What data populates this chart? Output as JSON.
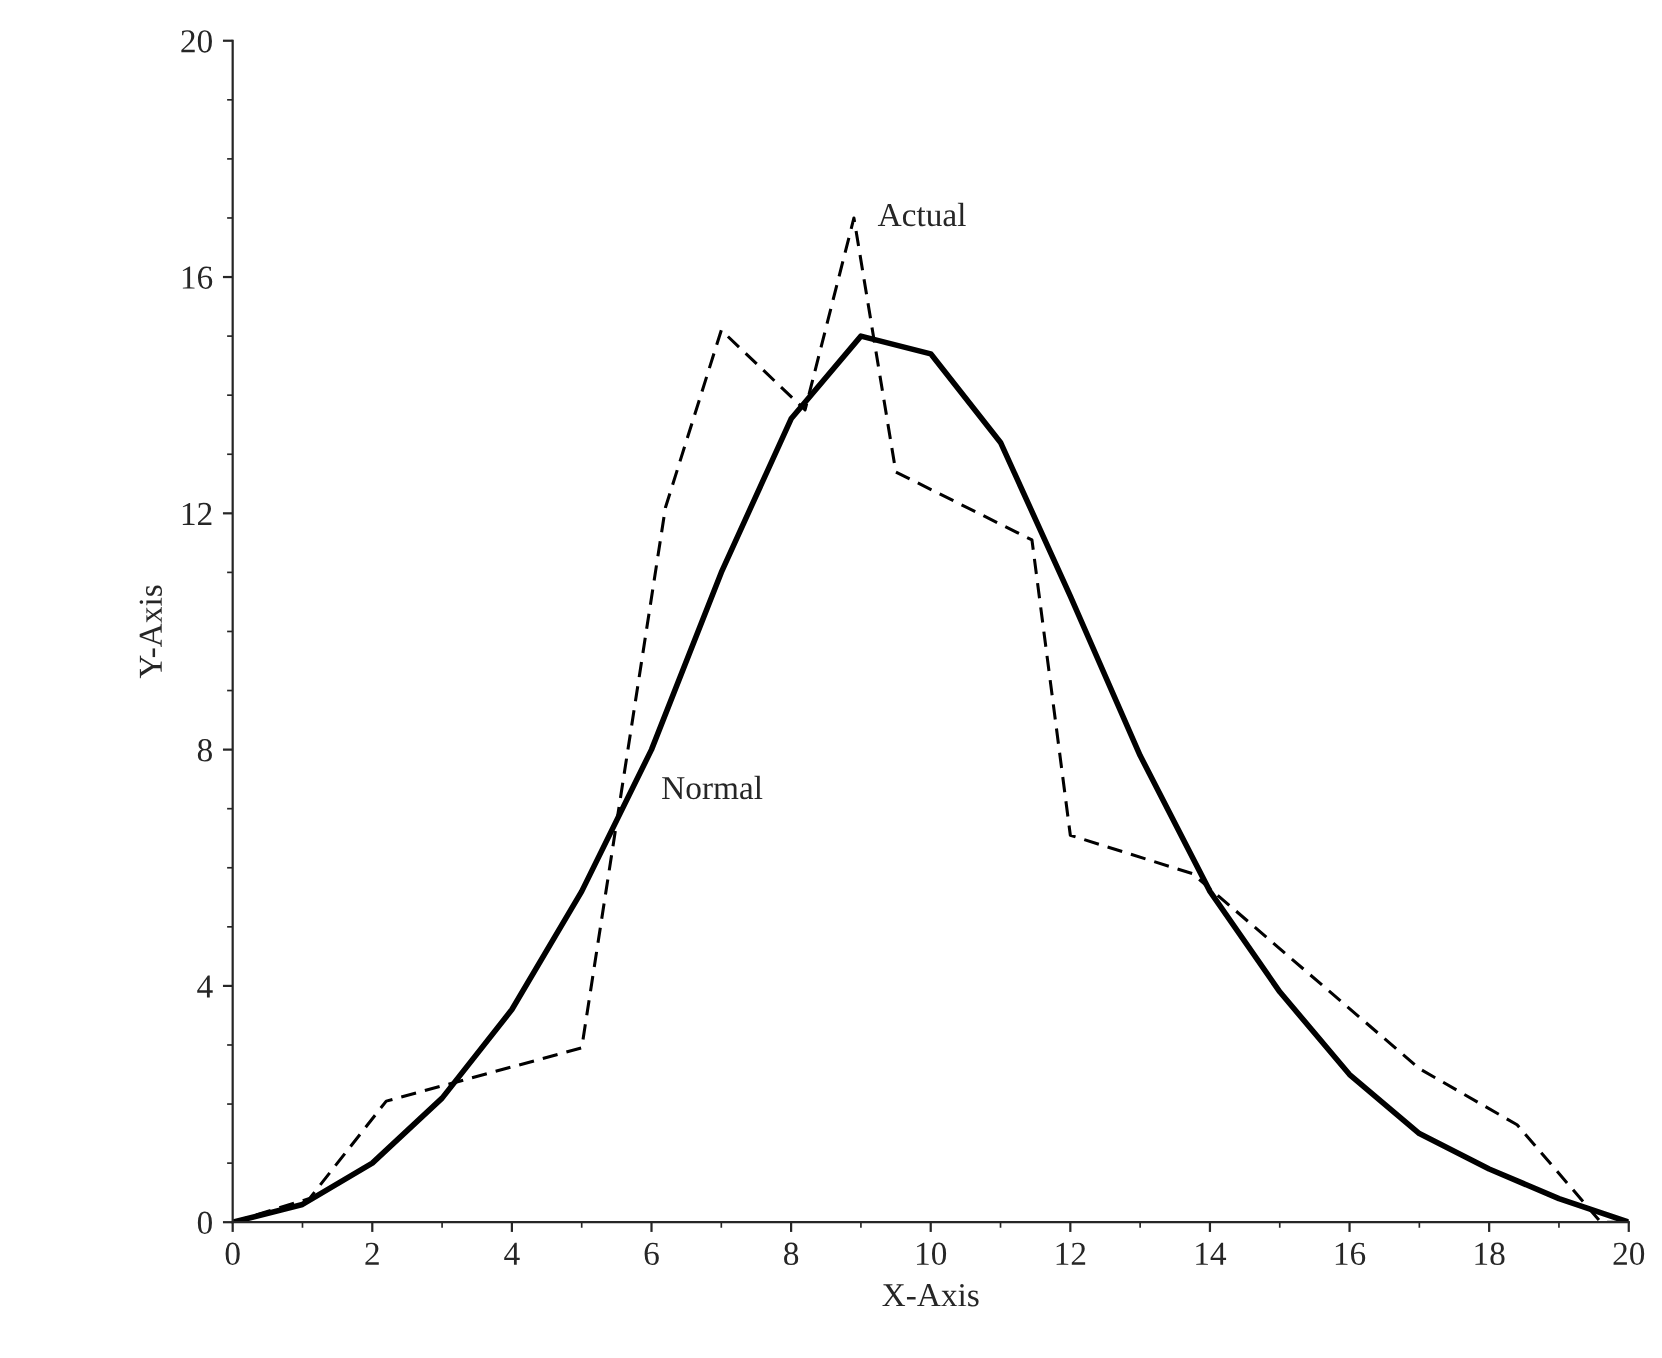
{
  "chart_data": {
    "type": "line",
    "xlabel": "X-Axis",
    "ylabel": "Y-Axis",
    "xlim": [
      0,
      20
    ],
    "xticks": [
      0,
      2,
      4,
      6,
      8,
      10,
      12,
      14,
      16,
      18,
      20
    ],
    "ylim": [
      0,
      20
    ],
    "yticks": [
      0,
      4,
      8,
      12,
      16,
      20
    ],
    "grid": false,
    "marker": "none",
    "series": [
      {
        "color": "#000000",
        "line_style": "dashed",
        "x": [
          0,
          1.1,
          2.2,
          5.0,
          6.2,
          7.0,
          8.2,
          8.9,
          9.5,
          11.45,
          12.0,
          13.75,
          17.0,
          18.4,
          19.6,
          20
        ],
        "values": [
          0,
          0.4,
          2.05,
          2.95,
          12.1,
          15.1,
          13.75,
          17.0,
          12.7,
          11.55,
          6.55,
          5.9,
          2.6,
          1.65,
          0,
          0
        ]
      },
      {
        "color": "#000000",
        "line_style": "solid",
        "x": [
          0,
          1,
          2,
          3,
          4,
          5,
          6,
          7,
          8,
          9,
          10,
          11,
          12,
          13,
          14,
          15,
          16,
          17,
          18,
          19,
          20
        ],
        "values": [
          0,
          0.3,
          1.0,
          2.1,
          3.6,
          5.6,
          8.0,
          11.0,
          13.6,
          15.0,
          14.7,
          13.2,
          10.6,
          7.9,
          5.6,
          3.9,
          2.5,
          1.5,
          0.9,
          0.4,
          0
        ]
      }
    ],
    "annotations": [
      {
        "text": "Actual",
        "x": 9.0,
        "y": 17.0
      },
      {
        "text": "Normal",
        "x": 5.9,
        "y": 7.3
      }
    ]
  }
}
